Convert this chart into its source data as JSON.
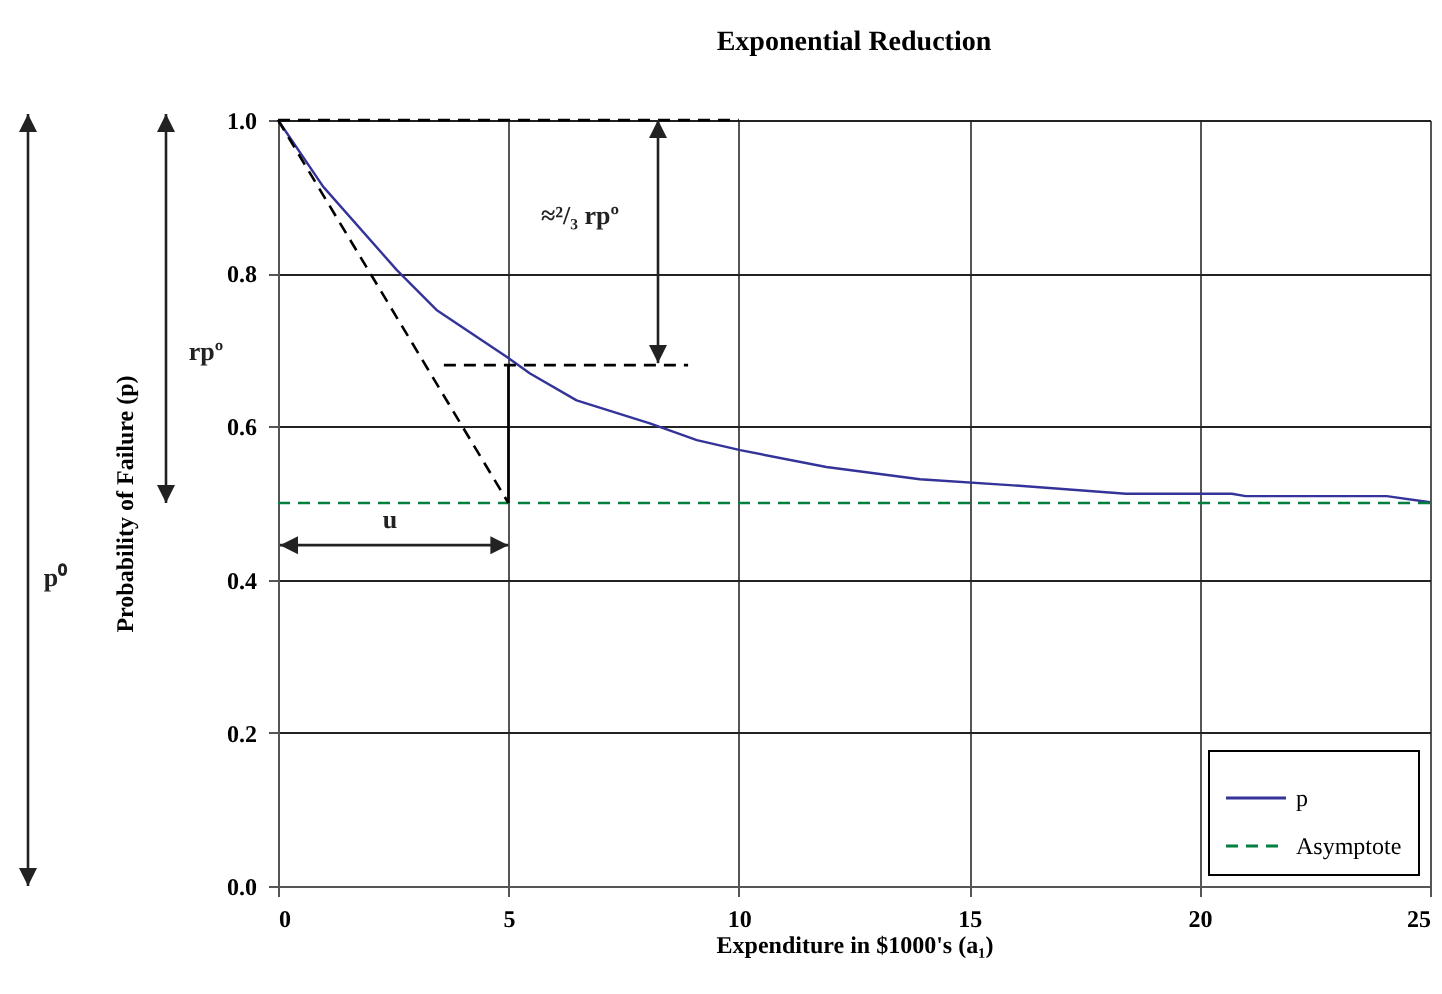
{
  "chart_data": {
    "type": "line",
    "title": "Exponential Reduction",
    "xlabel": "Expenditure in $1000's (a₁)",
    "ylabel": "Probability of Failure (p)",
    "xlim": [
      0,
      25
    ],
    "xticks": [
      0,
      5,
      10,
      15,
      20,
      25
    ],
    "ylim": [
      0,
      1
    ],
    "yticks": [
      {
        "value": 0,
        "label": "0.0"
      },
      0.2,
      0.4,
      0.6,
      0.8,
      {
        "value": 1,
        "label": "1.0"
      }
    ],
    "grid": true,
    "legend": "bottom right",
    "annotations": [
      "≈²/₃ rpº",
      "rpº",
      "p⁰",
      "u"
    ],
    "series": [
      {
        "name": "p",
        "color": "#333399",
        "line_style": "solid",
        "x": [
          0,
          0.98,
          2.58,
          3.44,
          4.96,
          5.47,
          6.48,
          8.07,
          9.09,
          10.03,
          11.9,
          13.93,
          15.96,
          18.4,
          20.7,
          21.0,
          24.06,
          25
        ],
        "values": [
          1.0,
          0.913,
          0.804,
          0.752,
          0.691,
          0.669,
          0.634,
          0.604,
          0.582,
          0.569,
          0.547,
          0.531,
          0.523,
          0.512,
          0.512,
          0.509,
          0.509,
          0.501
        ]
      },
      {
        "name": "Asymptote",
        "color": "#008040",
        "line_style": "dashed",
        "x": [
          0,
          25
        ],
        "values": [
          0.5,
          0.5
        ]
      },
      {
        "color": "#000000",
        "line_style": "dashed",
        "x": [
          0,
          5
        ],
        "values": [
          1.0,
          0.5
        ]
      },
      {
        "color": "#000000",
        "line_style": "dashed",
        "x": [
          0,
          10
        ],
        "values": [
          1.0,
          1.0
        ]
      },
      {
        "color": "#000000",
        "line_style": "dashed",
        "x": [
          3.6,
          8.9
        ],
        "values": [
          0.68,
          0.68
        ]
      },
      {
        "color": "#000000",
        "line_style": "solid",
        "x": [
          5,
          5
        ],
        "values": [
          0.5,
          0.68
        ]
      }
    ]
  }
}
